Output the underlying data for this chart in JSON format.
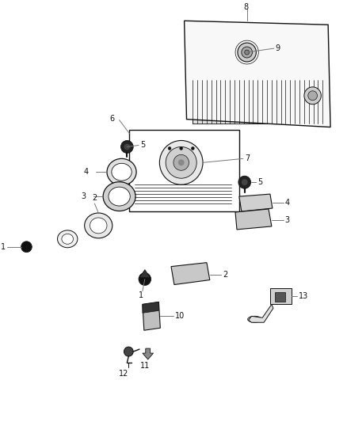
{
  "bg_color": "#ffffff",
  "gray": "#111111",
  "lgray": "#777777",
  "mgray": "#555555",
  "parts_color": "#888888"
}
